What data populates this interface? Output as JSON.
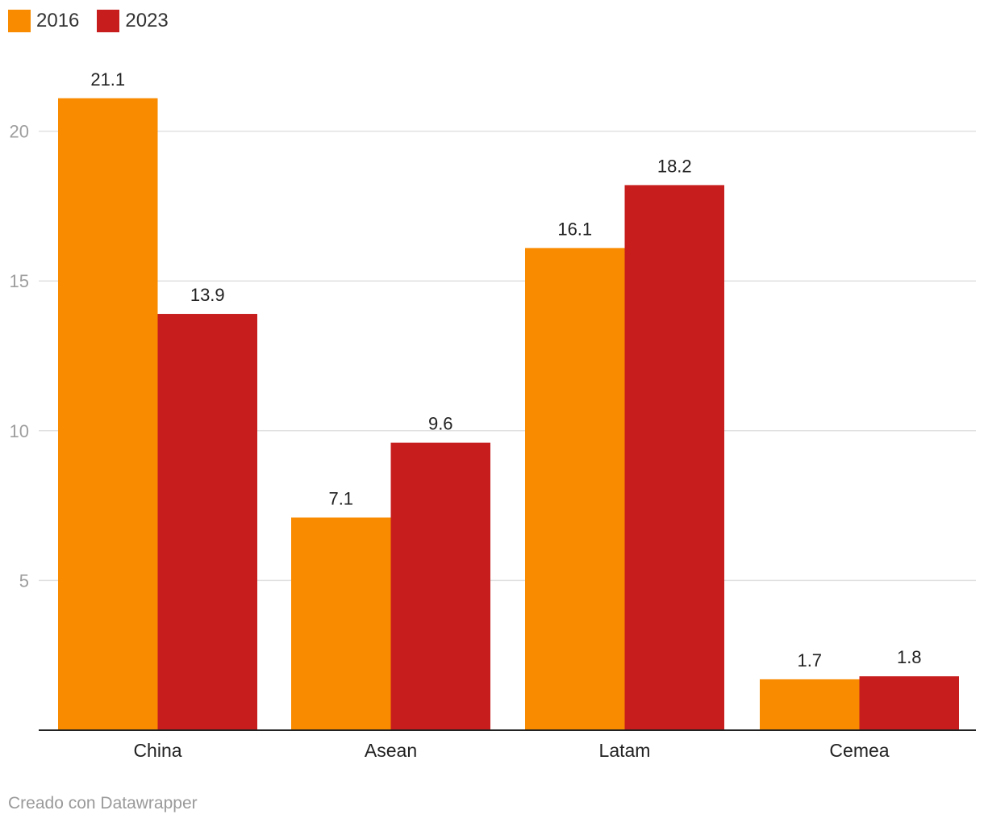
{
  "chart_data": {
    "type": "bar",
    "categories": [
      "China",
      "Asean",
      "Latam",
      "Cemea"
    ],
    "series": [
      {
        "name": "2016",
        "values": [
          21.1,
          7.1,
          16.1,
          1.7
        ],
        "color": "#f98b00"
      },
      {
        "name": "2023",
        "values": [
          13.9,
          9.6,
          18.2,
          1.8
        ],
        "color": "#c71d1d"
      }
    ],
    "value_labels": [
      [
        "21.1",
        "7.1",
        "16.1",
        "1.7"
      ],
      [
        "13.9",
        "9.6",
        "18.2",
        "1.8"
      ]
    ],
    "yticks": [
      5,
      10,
      15,
      20
    ],
    "ylim": [
      0,
      22
    ],
    "grid": true,
    "legend": "top-left"
  },
  "footer": "Creado con Datawrapper"
}
